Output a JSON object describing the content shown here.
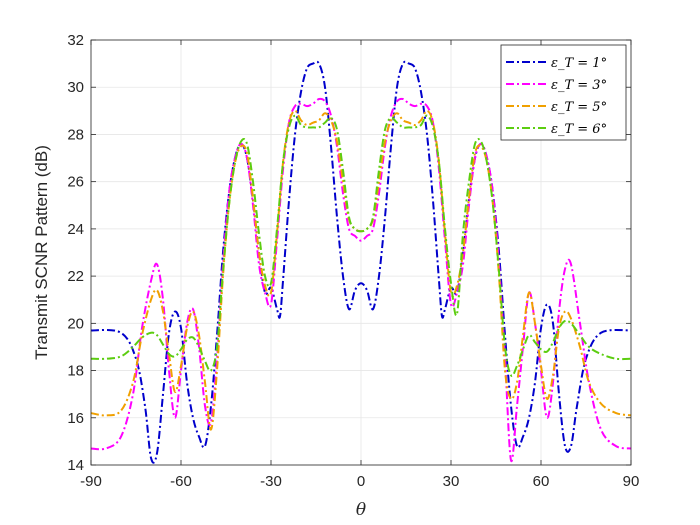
{
  "chart_data": {
    "type": "line",
    "title": "",
    "xlabel": "θ",
    "ylabel": "Transmit SCNR Pattern (dB)",
    "xlim": [
      -90,
      90
    ],
    "ylim": [
      14,
      32
    ],
    "xticks": [
      -90,
      -60,
      -30,
      0,
      30,
      60,
      90
    ],
    "yticks": [
      14,
      16,
      18,
      20,
      22,
      24,
      26,
      28,
      30,
      32
    ],
    "grid": true,
    "legend_position": "top-right",
    "series": [
      {
        "name": "ε_T = 1°",
        "color": "#0000cc",
        "x": [
          -90,
          -80,
          -75,
          -72,
          -70,
          -68,
          -66,
          -64,
          -62,
          -60,
          -58,
          -56,
          -54,
          -52,
          -50,
          -48,
          -46,
          -44,
          -42,
          -40,
          -38,
          -36,
          -34,
          -32,
          -30,
          -28,
          -27,
          -26,
          -24,
          -22,
          -20,
          -18,
          -16,
          -14,
          -12,
          -10,
          -8,
          -6,
          -4,
          -2,
          0,
          2,
          4,
          6,
          8,
          10,
          12,
          14,
          16,
          18,
          20,
          22,
          24,
          26,
          27,
          28,
          30,
          32,
          34,
          36,
          38,
          40,
          42,
          44,
          46,
          48,
          50,
          52,
          54,
          56,
          58,
          60,
          62,
          64,
          66,
          68,
          70,
          72,
          75,
          80,
          90
        ],
        "values": [
          19.7,
          19.6,
          18.5,
          16.5,
          14.3,
          14.5,
          17.0,
          19.6,
          20.5,
          19.8,
          17.5,
          16.0,
          15.2,
          14.8,
          16.5,
          19.5,
          23.0,
          25.5,
          27.0,
          27.6,
          27.0,
          25.2,
          23.0,
          21.3,
          21.5,
          20.6,
          20.3,
          21.8,
          25.2,
          28.0,
          29.8,
          30.8,
          31.0,
          31.0,
          30.0,
          27.5,
          24.5,
          22.0,
          20.6,
          21.4,
          21.7,
          21.4,
          20.6,
          22.0,
          24.5,
          27.5,
          30.0,
          31.0,
          31.0,
          30.8,
          29.8,
          28.0,
          25.2,
          21.8,
          20.3,
          20.6,
          21.5,
          21.3,
          23.0,
          25.2,
          27.0,
          27.6,
          27.0,
          25.5,
          23.0,
          19.5,
          16.5,
          14.8,
          15.2,
          16.0,
          17.5,
          19.8,
          20.8,
          20.0,
          17.0,
          14.8,
          14.8,
          16.5,
          18.5,
          19.6,
          19.7
        ]
      },
      {
        "name": "ε_T = 3°",
        "color": "#ff00ff",
        "x": [
          -90,
          -85,
          -80,
          -76,
          -73,
          -70,
          -68,
          -66,
          -64,
          -62,
          -60,
          -58,
          -56,
          -54,
          -52,
          -50,
          -48,
          -46,
          -44,
          -42,
          -40,
          -38,
          -36,
          -34,
          -32,
          -30,
          -28,
          -26,
          -24,
          -22,
          -20,
          -18,
          -16,
          -14,
          -12,
          -10,
          -8,
          -6,
          -4,
          -2,
          0,
          2,
          4,
          6,
          8,
          10,
          12,
          14,
          16,
          18,
          20,
          22,
          24,
          26,
          28,
          30,
          32,
          34,
          36,
          38,
          40,
          42,
          44,
          46,
          48,
          50,
          52,
          54,
          56,
          58,
          60,
          62,
          64,
          66,
          68,
          70,
          73,
          76,
          80,
          85,
          90
        ],
        "values": [
          14.7,
          14.7,
          15.2,
          17.0,
          19.8,
          21.8,
          22.5,
          21.0,
          18.0,
          16.0,
          18.0,
          20.0,
          20.6,
          19.0,
          16.5,
          15.8,
          18.5,
          22.5,
          25.5,
          27.0,
          27.6,
          27.0,
          25.0,
          22.5,
          21.3,
          20.8,
          23.5,
          26.5,
          28.5,
          29.2,
          29.3,
          29.2,
          29.3,
          29.5,
          29.4,
          28.8,
          27.5,
          25.5,
          24.0,
          23.7,
          23.5,
          23.7,
          24.0,
          25.5,
          27.5,
          28.8,
          29.4,
          29.5,
          29.3,
          29.2,
          29.3,
          29.2,
          28.5,
          26.5,
          23.5,
          20.8,
          21.3,
          22.5,
          25.0,
          27.0,
          27.6,
          27.0,
          25.5,
          22.5,
          18.5,
          14.2,
          16.5,
          19.0,
          21.3,
          20.0,
          18.0,
          16.0,
          17.5,
          20.5,
          22.3,
          22.5,
          20.0,
          17.5,
          15.5,
          14.8,
          14.7
        ]
      },
      {
        "name": "ε_T = 5°",
        "color": "#f0a000",
        "x": [
          -90,
          -85,
          -80,
          -76,
          -73,
          -70,
          -68,
          -66,
          -64,
          -62,
          -60,
          -58,
          -56,
          -54,
          -52,
          -50,
          -48,
          -46,
          -44,
          -42,
          -40,
          -38,
          -36,
          -34,
          -32,
          -30,
          -28,
          -26,
          -24,
          -22,
          -20,
          -18,
          -16,
          -14,
          -12,
          -10,
          -8,
          -6,
          -4,
          -2,
          0,
          2,
          4,
          6,
          8,
          10,
          12,
          14,
          16,
          18,
          20,
          22,
          24,
          26,
          28,
          30,
          32,
          34,
          36,
          38,
          40,
          42,
          44,
          46,
          48,
          50,
          52,
          54,
          56,
          58,
          60,
          62,
          64,
          66,
          68,
          70,
          73,
          76,
          80,
          85,
          90
        ],
        "values": [
          16.2,
          16.1,
          16.3,
          17.5,
          19.5,
          21.0,
          21.4,
          20.5,
          18.7,
          17.1,
          18.2,
          19.8,
          20.5,
          19.5,
          17.5,
          15.5,
          18.0,
          22.0,
          25.0,
          26.8,
          27.5,
          27.2,
          25.3,
          23.0,
          21.6,
          21.3,
          23.8,
          26.8,
          28.5,
          29.0,
          28.6,
          28.4,
          28.5,
          28.6,
          28.9,
          28.6,
          27.7,
          26.0,
          24.4,
          24.0,
          23.9,
          24.0,
          24.4,
          26.0,
          27.7,
          28.6,
          28.9,
          28.6,
          28.5,
          28.4,
          28.6,
          29.0,
          28.5,
          26.8,
          23.8,
          21.3,
          21.6,
          23.0,
          25.3,
          27.2,
          27.5,
          26.8,
          25.0,
          22.0,
          18.0,
          16.8,
          17.5,
          19.5,
          21.3,
          20.0,
          18.2,
          16.8,
          17.8,
          19.8,
          20.5,
          20.2,
          19.0,
          17.5,
          16.6,
          16.2,
          16.1
        ]
      },
      {
        "name": "ε_T = 6°",
        "color": "#5ccd10",
        "x": [
          -90,
          -85,
          -80,
          -76,
          -73,
          -70,
          -68,
          -66,
          -64,
          -62,
          -60,
          -58,
          -56,
          -54,
          -52,
          -50,
          -48,
          -46,
          -44,
          -42,
          -40,
          -38,
          -36,
          -34,
          -32,
          -30,
          -28,
          -26,
          -24,
          -22,
          -20,
          -18,
          -16,
          -14,
          -12,
          -10,
          -8,
          -6,
          -4,
          -2,
          0,
          2,
          4,
          6,
          8,
          10,
          12,
          14,
          16,
          18,
          20,
          22,
          24,
          26,
          28,
          30,
          32,
          34,
          36,
          38,
          40,
          42,
          44,
          46,
          48,
          50,
          52,
          54,
          56,
          58,
          60,
          62,
          64,
          66,
          68,
          70,
          73,
          76,
          80,
          85,
          90
        ],
        "values": [
          18.5,
          18.5,
          18.6,
          19.0,
          19.4,
          19.6,
          19.5,
          19.1,
          18.7,
          18.6,
          18.9,
          19.3,
          19.4,
          19.0,
          18.4,
          18.0,
          19.0,
          22.2,
          25.0,
          26.8,
          27.7,
          27.6,
          26.0,
          23.8,
          22.0,
          21.7,
          24.0,
          26.8,
          28.3,
          28.8,
          28.4,
          28.3,
          28.3,
          28.3,
          28.5,
          28.7,
          28.2,
          26.5,
          24.5,
          24.0,
          23.9,
          24.0,
          24.5,
          26.5,
          28.2,
          28.7,
          28.5,
          28.3,
          28.3,
          28.3,
          28.4,
          28.8,
          28.3,
          26.8,
          24.0,
          21.7,
          20.4,
          23.8,
          26.0,
          27.6,
          27.7,
          26.8,
          25.0,
          22.2,
          19.0,
          17.8,
          18.2,
          18.9,
          19.5,
          19.2,
          18.9,
          18.8,
          19.2,
          19.8,
          20.1,
          20.0,
          19.5,
          19.0,
          18.7,
          18.5,
          18.5
        ]
      }
    ]
  }
}
